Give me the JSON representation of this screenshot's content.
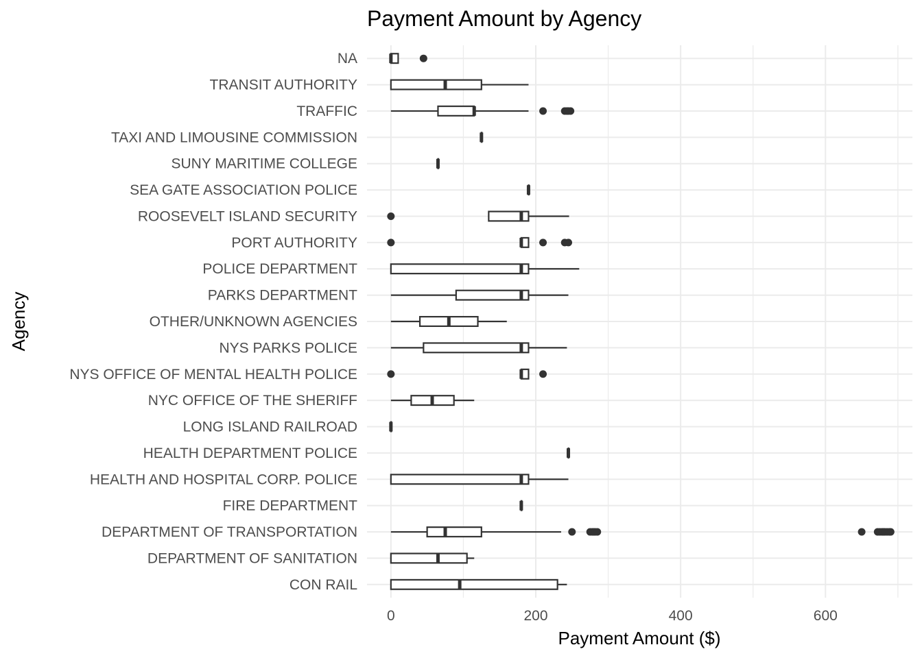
{
  "chart_data": {
    "type": "boxplot",
    "orientation": "horizontal",
    "title": "Payment Amount by Agency",
    "xlabel": "Payment Amount ($)",
    "ylabel": "Agency",
    "xlim": [
      -33,
      720
    ],
    "x_ticks": [
      0,
      200,
      400,
      600
    ],
    "x_minor_ticks": [
      100,
      300,
      500,
      700
    ],
    "grid": true,
    "legend": "none",
    "categories": [
      "CON RAIL",
      "DEPARTMENT OF SANITATION",
      "DEPARTMENT OF TRANSPORTATION",
      "FIRE DEPARTMENT",
      "HEALTH AND HOSPITAL CORP. POLICE",
      "HEALTH DEPARTMENT POLICE",
      "LONG ISLAND RAILROAD",
      "NYC OFFICE OF THE SHERIFF",
      "NYS OFFICE OF MENTAL HEALTH POLICE",
      "NYS PARKS POLICE",
      "OTHER/UNKNOWN AGENCIES",
      "PARKS DEPARTMENT",
      "POLICE DEPARTMENT",
      "PORT AUTHORITY",
      "ROOSEVELT ISLAND SECURITY",
      "SEA GATE ASSOCIATION POLICE",
      "SUNY MARITIME COLLEGE",
      "TAXI AND LIMOUSINE COMMISSION",
      "TRAFFIC",
      "TRANSIT AUTHORITY",
      "NA"
    ],
    "boxes": [
      {
        "min": 0,
        "q1": 0,
        "median": 95,
        "q3": 230,
        "max": 243,
        "outliers": []
      },
      {
        "min": 0,
        "q1": 0,
        "median": 65,
        "q3": 105,
        "max": 115,
        "outliers": []
      },
      {
        "min": 0,
        "q1": 50,
        "median": 75,
        "q3": 125,
        "max": 235,
        "outliers": [
          250,
          275,
          278,
          280,
          282,
          285,
          650,
          672,
          675,
          678,
          680,
          682,
          685,
          688,
          690
        ]
      },
      {
        "min": 180,
        "q1": 180,
        "median": 180,
        "q3": 180,
        "max": 180,
        "outliers": []
      },
      {
        "min": 0,
        "q1": 0,
        "median": 180,
        "q3": 190,
        "max": 245,
        "outliers": []
      },
      {
        "min": 245,
        "q1": 245,
        "median": 245,
        "q3": 245,
        "max": 245,
        "outliers": []
      },
      {
        "min": 0,
        "q1": 0,
        "median": 0,
        "q3": 0,
        "max": 0,
        "outliers": []
      },
      {
        "min": 0,
        "q1": 28,
        "median": 57,
        "q3": 87,
        "max": 115,
        "outliers": []
      },
      {
        "min": 180,
        "q1": 180,
        "median": 180,
        "q3": 190,
        "max": 190,
        "outliers": [
          0,
          210
        ]
      },
      {
        "min": 0,
        "q1": 45,
        "median": 180,
        "q3": 190,
        "max": 243,
        "outliers": []
      },
      {
        "min": 0,
        "q1": 40,
        "median": 80,
        "q3": 120,
        "max": 160,
        "outliers": []
      },
      {
        "min": 0,
        "q1": 90,
        "median": 180,
        "q3": 190,
        "max": 245,
        "outliers": []
      },
      {
        "min": 0,
        "q1": 0,
        "median": 180,
        "q3": 190,
        "max": 260,
        "outliers": []
      },
      {
        "min": 180,
        "q1": 180,
        "median": 180,
        "q3": 190,
        "max": 190,
        "outliers": [
          0,
          210,
          240,
          245
        ]
      },
      {
        "min": 135,
        "q1": 135,
        "median": 180,
        "q3": 190,
        "max": 246,
        "outliers": [
          0
        ]
      },
      {
        "min": 190,
        "q1": 190,
        "median": 190,
        "q3": 190,
        "max": 190,
        "outliers": []
      },
      {
        "min": 65,
        "q1": 65,
        "median": 65,
        "q3": 65,
        "max": 65,
        "outliers": []
      },
      {
        "min": 125,
        "q1": 125,
        "median": 125,
        "q3": 125,
        "max": 125,
        "outliers": []
      },
      {
        "min": 0,
        "q1": 65,
        "median": 115,
        "q3": 115,
        "max": 190,
        "outliers": [
          210,
          240,
          243,
          245,
          248
        ]
      },
      {
        "min": 0,
        "q1": 0,
        "median": 75,
        "q3": 125,
        "max": 190,
        "outliers": []
      },
      {
        "min": 0,
        "q1": 0,
        "median": 0,
        "q3": 10,
        "max": 10,
        "outliers": [
          45
        ]
      }
    ]
  }
}
